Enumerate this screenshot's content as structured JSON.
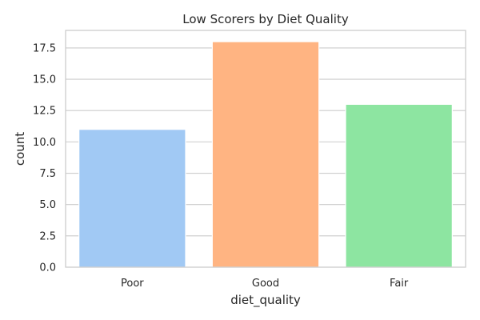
{
  "chart_data": {
    "type": "bar",
    "title": "Low Scorers by Diet Quality",
    "xlabel": "diet_quality",
    "ylabel": "count",
    "categories": [
      "Poor",
      "Good",
      "Fair"
    ],
    "values": [
      11,
      18,
      13
    ],
    "colors": [
      "#a1c9f4",
      "#ffb482",
      "#8de5a1"
    ],
    "ylim": [
      0,
      18.9
    ],
    "yticks": [
      0.0,
      2.5,
      5.0,
      7.5,
      10.0,
      12.5,
      15.0,
      17.5
    ],
    "ytick_labels": [
      "0.0",
      "2.5",
      "5.0",
      "7.5",
      "10.0",
      "12.5",
      "15.0",
      "17.5"
    ],
    "grid": true,
    "legend": "none"
  }
}
